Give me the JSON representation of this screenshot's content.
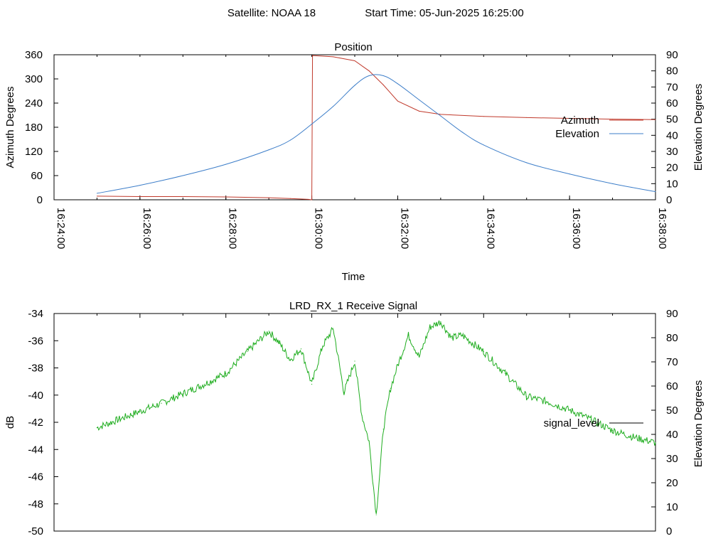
{
  "header": {
    "satellite": "Satellite: NOAA 18",
    "start_time": "Start Time: 05-Jun-2025 16:25:00"
  },
  "colors": {
    "azimuth": "#c0392b",
    "elevation": "#3d7ec9",
    "signal": "#1fad1f"
  },
  "chart_data": [
    {
      "type": "line",
      "title": "Position",
      "xlabel": "Time",
      "ylabel": "Azimuth Degrees",
      "y2label": "Elevation Degrees",
      "xlim": [
        "16:24:00",
        "16:38:00"
      ],
      "x_ticks": [
        "16:24:00",
        "16:26:00",
        "16:28:00",
        "16:30:00",
        "16:32:00",
        "16:34:00",
        "16:36:00",
        "16:38:00"
      ],
      "ylim": [
        0,
        360
      ],
      "y_ticks": [
        "0",
        "60",
        "120",
        "180",
        "240",
        "300",
        "360"
      ],
      "y2lim": [
        0,
        90
      ],
      "y2_ticks": [
        "0",
        "10",
        "20",
        "30",
        "40",
        "50",
        "60",
        "70",
        "80",
        "90"
      ],
      "legend": "right",
      "grid": false,
      "series": [
        {
          "name": "Azimuth",
          "axis": "left",
          "x": [
            "16:25:00",
            "16:26:00",
            "16:27:00",
            "16:28:00",
            "16:29:00",
            "16:29:30",
            "16:29:55",
            "16:30:00",
            "16:30:01",
            "16:30:30",
            "16:31:00",
            "16:31:20",
            "16:31:40",
            "16:32:00",
            "16:32:30",
            "16:33:00",
            "16:34:00",
            "16:35:00",
            "16:36:00",
            "16:37:00",
            "16:38:00"
          ],
          "values": [
            9,
            8,
            8,
            7,
            5,
            3,
            1,
            0,
            358,
            355,
            345,
            320,
            285,
            245,
            220,
            212,
            207,
            204,
            202,
            200,
            199
          ]
        },
        {
          "name": "Elevation",
          "axis": "right",
          "x": [
            "16:25:00",
            "16:26:00",
            "16:27:00",
            "16:28:00",
            "16:29:00",
            "16:29:30",
            "16:30:00",
            "16:30:30",
            "16:31:00",
            "16:31:20",
            "16:31:40",
            "16:32:00",
            "16:32:30",
            "16:33:00",
            "16:33:30",
            "16:34:00",
            "16:35:00",
            "16:36:00",
            "16:37:00",
            "16:38:00"
          ],
          "values": [
            4,
            9,
            15,
            22,
            31,
            37,
            47,
            58,
            71,
            77,
            77,
            72,
            62,
            52,
            42,
            34,
            23,
            16,
            10,
            5
          ]
        }
      ]
    },
    {
      "type": "line",
      "title": "LRD_RX_1 Receive Signal",
      "ylabel": "dB",
      "y2label": "Elevation Degrees",
      "ylim": [
        -50,
        -34
      ],
      "y_ticks": [
        "-34",
        "-36",
        "-38",
        "-40",
        "-42",
        "-44",
        "-46",
        "-48",
        "-50"
      ],
      "y2lim": [
        0,
        90
      ],
      "y2_ticks": [
        "0",
        "10",
        "20",
        "30",
        "40",
        "50",
        "60",
        "70",
        "80",
        "90"
      ],
      "legend": "right",
      "series": [
        {
          "name": "signal_level",
          "x": [
            "16:25:00",
            "16:25:30",
            "16:26:00",
            "16:26:30",
            "16:27:00",
            "16:27:30",
            "16:28:00",
            "16:28:30",
            "16:29:00",
            "16:29:15",
            "16:29:30",
            "16:29:45",
            "16:30:00",
            "16:30:15",
            "16:30:30",
            "16:30:45",
            "16:31:00",
            "16:31:10",
            "16:31:20",
            "16:31:30",
            "16:31:40",
            "16:31:50",
            "16:32:00",
            "16:32:15",
            "16:32:30",
            "16:32:45",
            "16:33:00",
            "16:33:15",
            "16:33:30",
            "16:34:00",
            "16:34:30",
            "16:35:00",
            "16:35:30",
            "16:36:00",
            "16:36:30",
            "16:37:00",
            "16:37:30",
            "16:38:00"
          ],
          "values": [
            -42.4,
            -41.8,
            -41.2,
            -40.6,
            -39.9,
            -39.2,
            -38.4,
            -36.8,
            -35.3,
            -36.2,
            -37.4,
            -36.6,
            -39.2,
            -36.4,
            -35.1,
            -39.8,
            -37.5,
            -41.5,
            -43.4,
            -48.8,
            -42.5,
            -39.5,
            -37.8,
            -35.6,
            -37.2,
            -35.0,
            -34.6,
            -35.8,
            -35.6,
            -36.8,
            -38.4,
            -40.1,
            -40.5,
            -41.1,
            -41.8,
            -42.6,
            -43.1,
            -43.5
          ]
        }
      ]
    }
  ]
}
